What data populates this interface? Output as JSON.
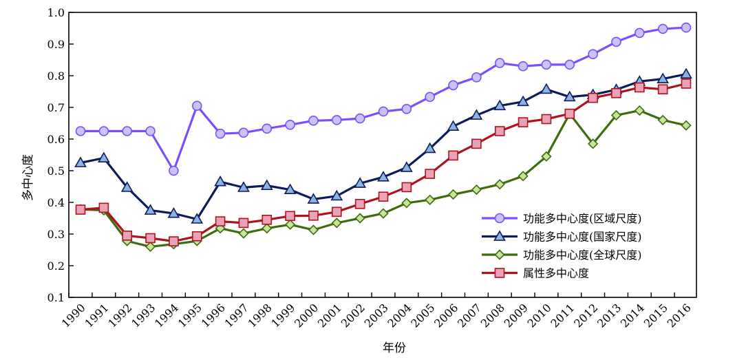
{
  "chart_data": {
    "type": "line",
    "title": "",
    "xlabel": "年份",
    "ylabel": "多中心度",
    "ylim": [
      0.1,
      1.0
    ],
    "yticks": [
      "0.1",
      "0.2",
      "0.3",
      "0.4",
      "0.5",
      "0.6",
      "0.7",
      "0.8",
      "0.9",
      "1.0"
    ],
    "grid": false,
    "legend_position": "bottom-right",
    "categories": [
      "1990",
      "1991",
      "1992",
      "1993",
      "1994",
      "1995",
      "1996",
      "1997",
      "1998",
      "1999",
      "2000",
      "2001",
      "2002",
      "2003",
      "2004",
      "2005",
      "2006",
      "2007",
      "2008",
      "2009",
      "2010",
      "2011",
      "2012",
      "2013",
      "2014",
      "2015",
      "2016"
    ],
    "series": [
      {
        "name": "功能多中心度(区域尺度)",
        "color": "#7b4dff",
        "marker": "circle",
        "marker_fill": "#c9c2f2",
        "values": [
          0.625,
          0.625,
          0.625,
          0.625,
          0.5,
          0.705,
          0.617,
          0.62,
          0.633,
          0.645,
          0.658,
          0.66,
          0.665,
          0.687,
          0.695,
          0.733,
          0.77,
          0.795,
          0.84,
          0.83,
          0.835,
          0.835,
          0.868,
          0.907,
          0.935,
          0.948,
          0.952
        ]
      },
      {
        "name": "功能多中心度(国家尺度)",
        "color": "#0d1a5c",
        "marker": "triangle",
        "marker_fill": "#8ab4e0",
        "values": [
          0.525,
          0.54,
          0.447,
          0.375,
          0.365,
          0.347,
          0.465,
          0.447,
          0.453,
          0.44,
          0.41,
          0.42,
          0.46,
          0.48,
          0.51,
          0.57,
          0.64,
          0.675,
          0.705,
          0.718,
          0.757,
          0.733,
          0.74,
          0.756,
          0.782,
          0.79,
          0.805
        ]
      },
      {
        "name": "功能多中心度(全球尺度)",
        "color": "#3d6b0d",
        "marker": "diamond",
        "marker_fill": "#c5e59a",
        "values": [
          0.378,
          0.375,
          0.278,
          0.26,
          0.268,
          0.278,
          0.318,
          0.302,
          0.318,
          0.33,
          0.313,
          0.335,
          0.35,
          0.365,
          0.398,
          0.408,
          0.425,
          0.44,
          0.457,
          0.483,
          0.545,
          0.68,
          0.585,
          0.675,
          0.69,
          0.66,
          0.643
        ]
      },
      {
        "name": "属性多中心度",
        "color": "#b0121b",
        "marker": "square",
        "marker_fill": "#e8a3b8",
        "values": [
          0.377,
          0.383,
          0.295,
          0.287,
          0.277,
          0.293,
          0.34,
          0.335,
          0.345,
          0.357,
          0.358,
          0.37,
          0.395,
          0.418,
          0.448,
          0.49,
          0.548,
          0.585,
          0.625,
          0.653,
          0.663,
          0.68,
          0.73,
          0.745,
          0.763,
          0.757,
          0.775
        ]
      }
    ]
  }
}
